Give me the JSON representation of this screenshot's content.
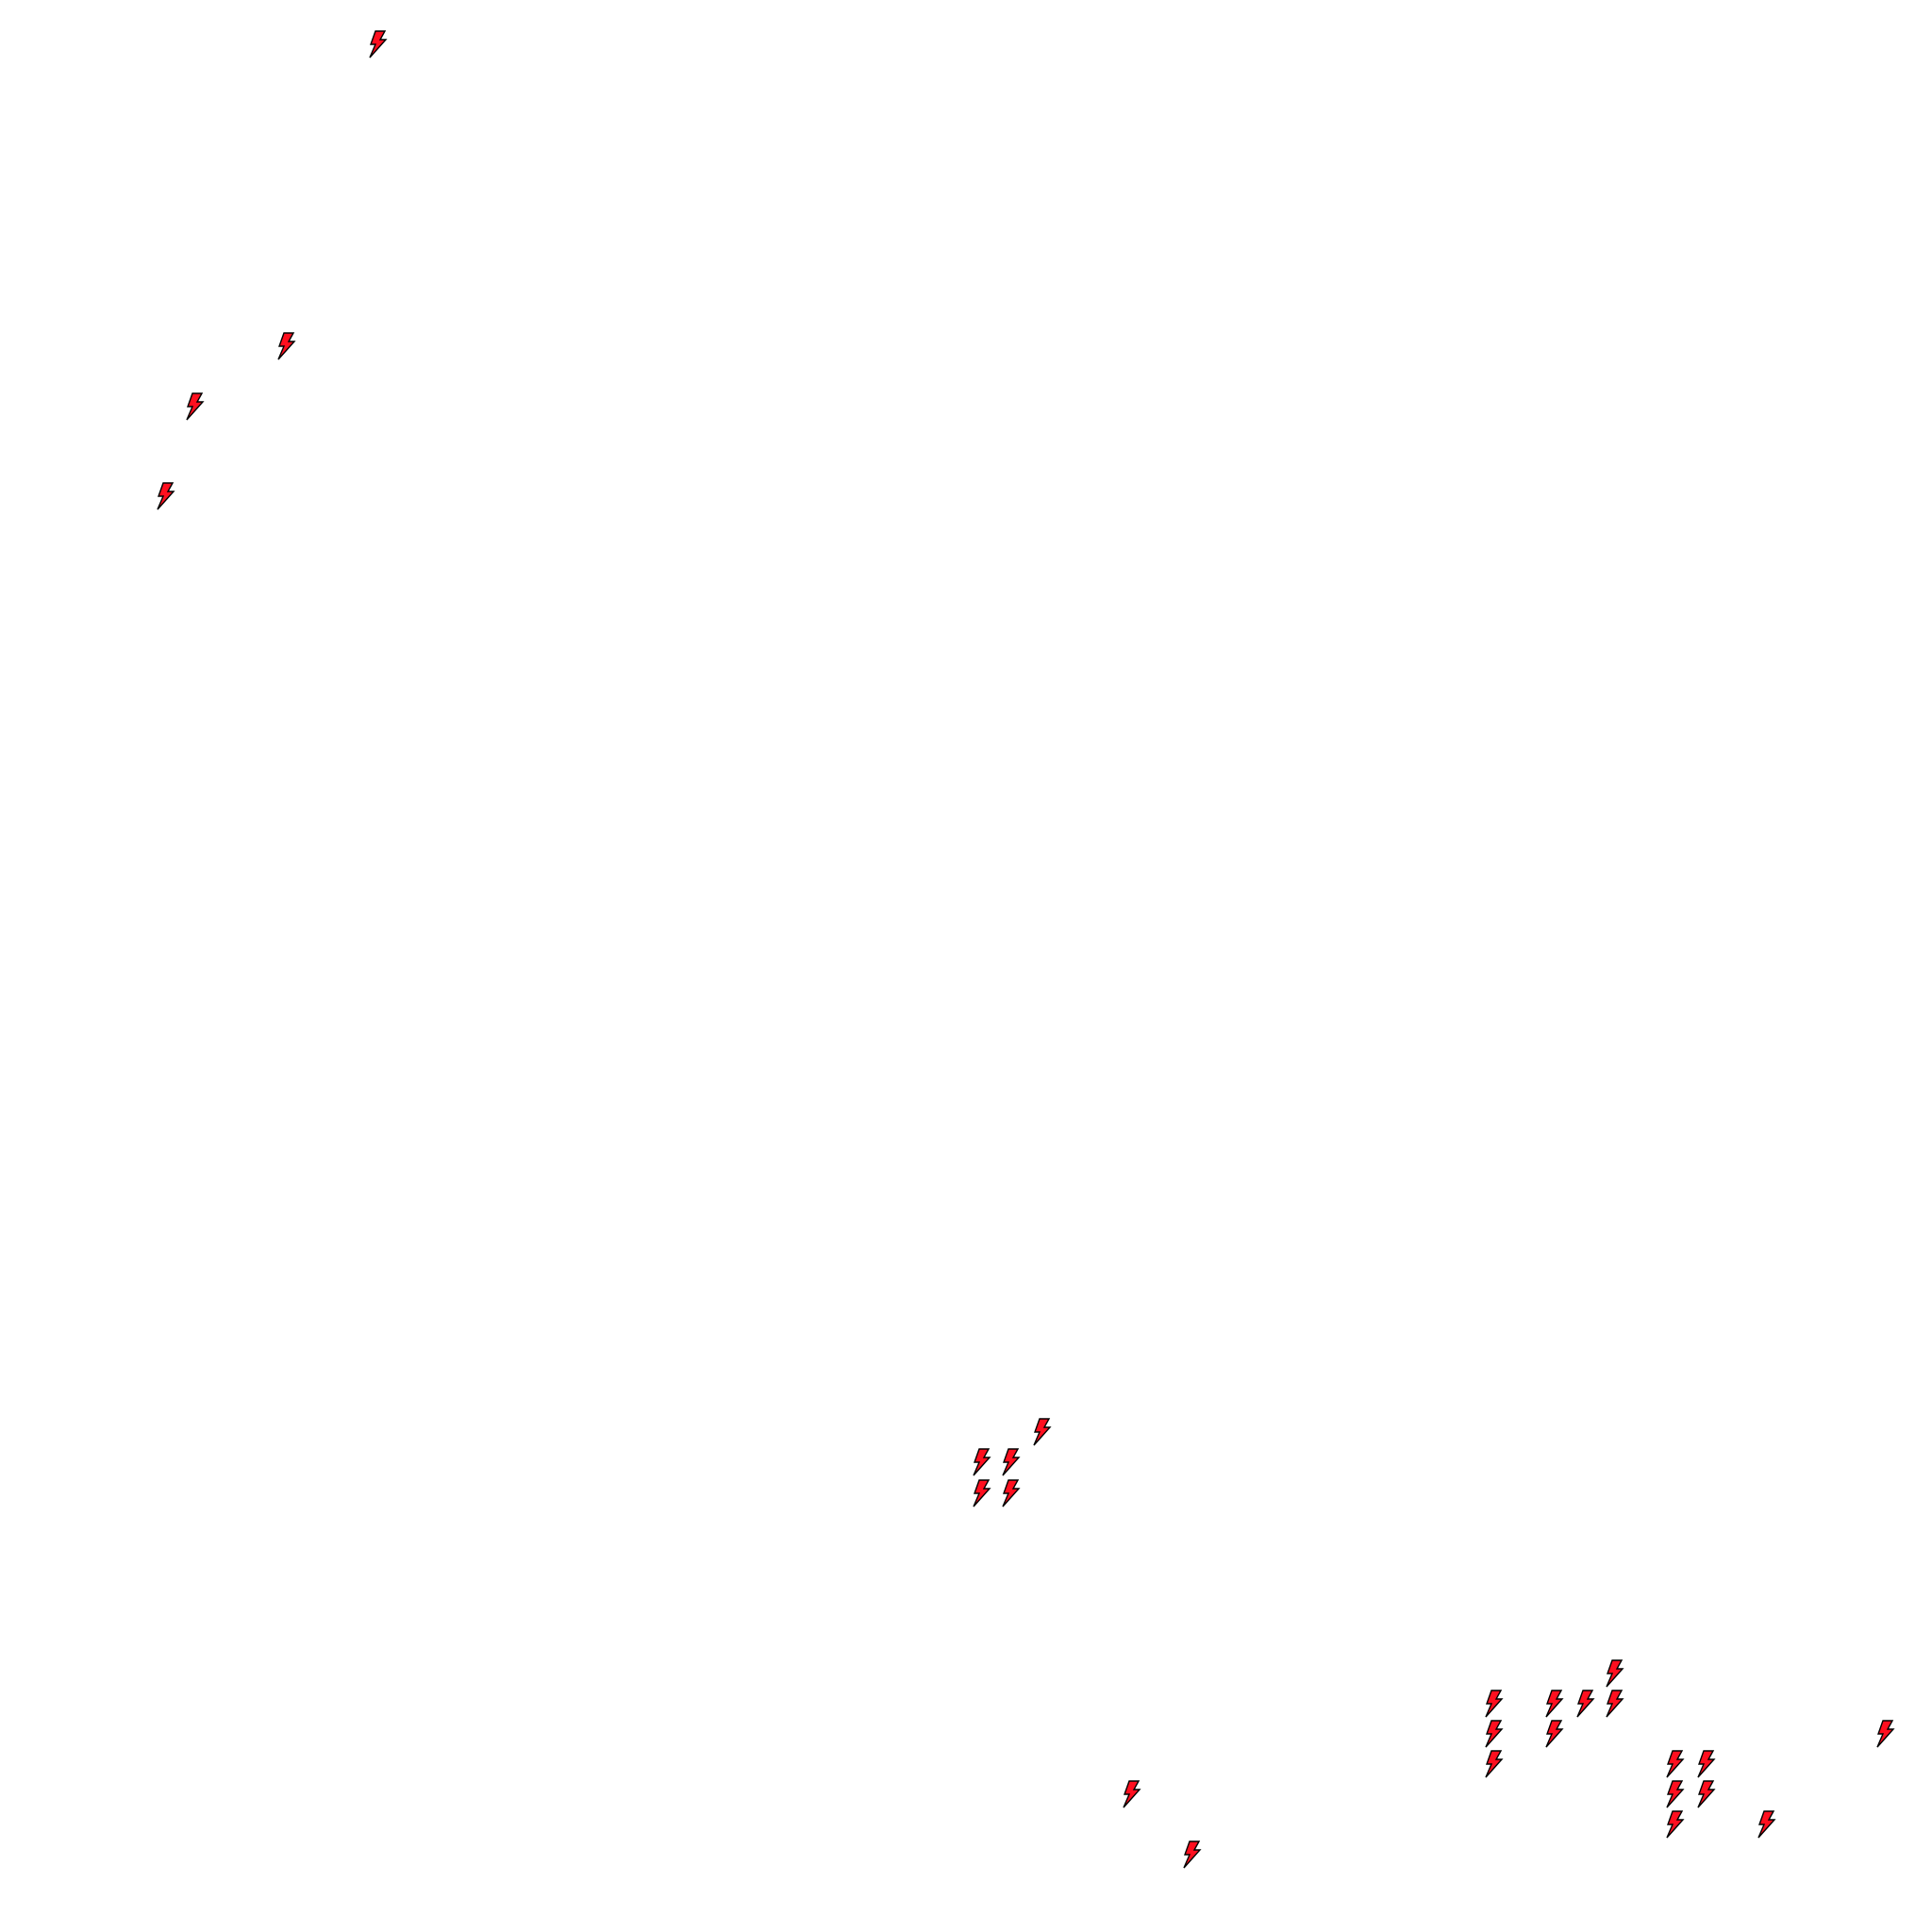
{
  "map": {
    "marker_icon": "lightning-bolt-icon",
    "marker_fill": "#ff0f1f",
    "marker_stroke": "#000000",
    "background": "#ffffff",
    "marker_count": 26
  }
}
